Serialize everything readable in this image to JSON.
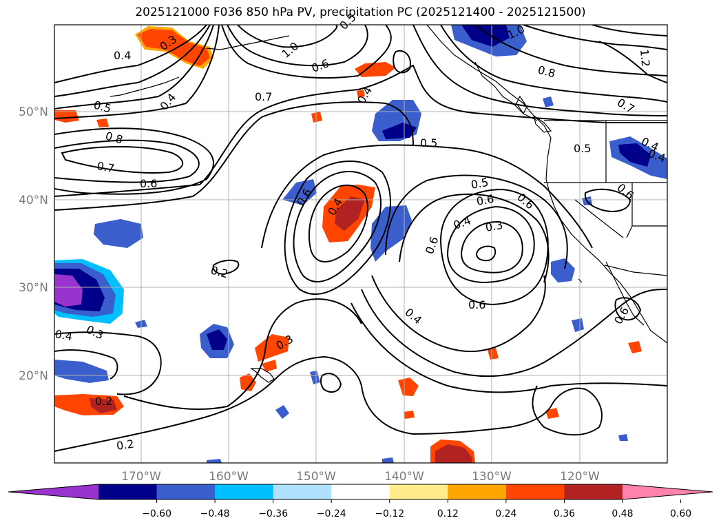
{
  "title": "2025121000 F036 850 hPa PV, precipitation PC (2025121400 - 2025121500)",
  "lat_labels": [
    "50°N",
    "40°N",
    "30°N",
    "20°N"
  ],
  "lon_labels": [
    "170°W",
    "160°W",
    "150°W",
    "140°W",
    "130°W",
    "120°W"
  ],
  "colorbar": {
    "ticks": [
      "−0.60",
      "−0.48",
      "−0.36",
      "−0.24",
      "−0.12",
      "0.12",
      "0.24",
      "0.36",
      "0.48",
      "0.60"
    ],
    "colors": [
      "#9a32cd",
      "#00008b",
      "#3a5fcd",
      "#00bfff",
      "#b0e2ff",
      "#ffffff",
      "#ffec8b",
      "#ffa500",
      "#ff4500",
      "#b22222",
      "#ff82ab"
    ]
  },
  "contour_labels": [
    "0.3",
    "0.4",
    "0.5",
    "0.8",
    "0.7",
    "0.6",
    "0.5",
    "0.4",
    "0.6",
    "1.0",
    "0.6",
    "0.4",
    "0.7",
    "0.8",
    "1.0",
    "1.2",
    "0.7",
    "0.5",
    "0.5",
    "0.4",
    "0.6",
    "0.4",
    "0.6",
    "0.5",
    "0.6",
    "0.4",
    "0.3",
    "0.6",
    "0.6",
    "0.4",
    "0.6",
    "0.2",
    "0.3",
    "0.4",
    "0.3",
    "0.2",
    "0.2",
    "0.4"
  ]
}
